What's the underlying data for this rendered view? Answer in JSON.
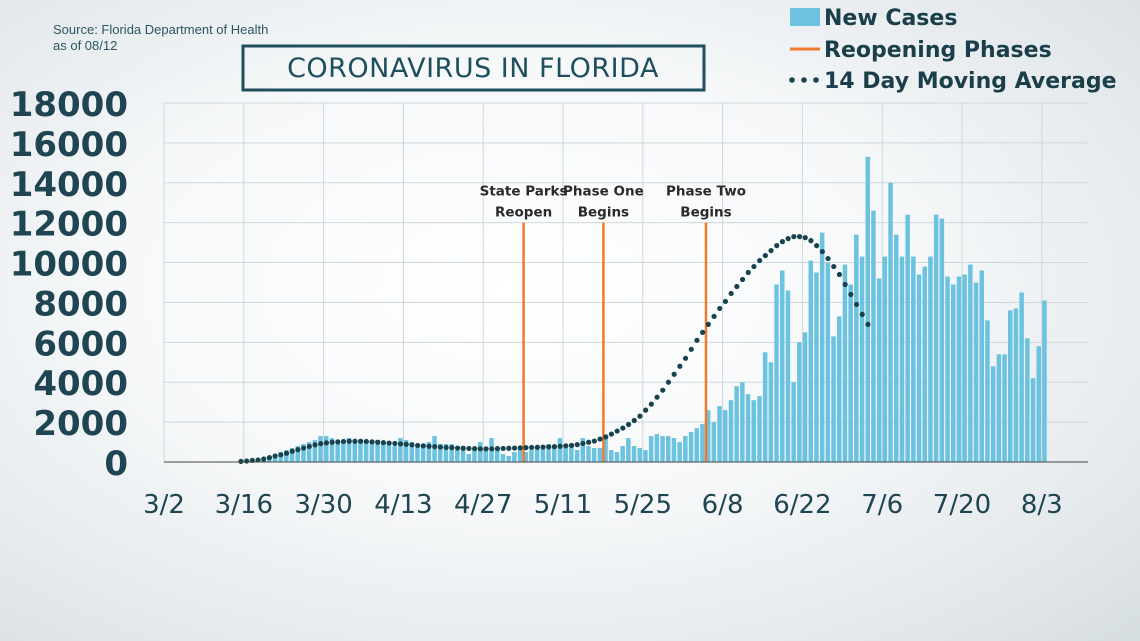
{
  "header": {
    "source_line1": "Source: Florida Department of Health",
    "source_line2": "as of 08/12",
    "title": "CORONAVIRUS IN FLORIDA"
  },
  "colors": {
    "bars": "#6cc3df",
    "phase_line": "#f07a2b",
    "moving_avg": "#17434e",
    "title_border": "#1e4f5c"
  },
  "chart_data": {
    "type": "bar",
    "title": "CORONAVIRUS IN FLORIDA",
    "x_start_date": "3/2",
    "x_ticks": [
      "3/2",
      "3/16",
      "3/30",
      "4/13",
      "4/27",
      "5/11",
      "5/25",
      "6/8",
      "6/22",
      "7/6",
      "7/20",
      "8/3"
    ],
    "ylim": [
      0,
      18000
    ],
    "y_ticks": [
      "0",
      "2000",
      "4000",
      "6000",
      "8000",
      "10000",
      "12000",
      "14000",
      "16000",
      "18000"
    ],
    "grid": true,
    "legend_position": "top-right",
    "series": [
      {
        "name": "New Cases",
        "type": "bar",
        "start": "3/14",
        "values": [
          20,
          50,
          70,
          100,
          150,
          200,
          250,
          300,
          500,
          600,
          700,
          800,
          900,
          1000,
          1100,
          1300,
          1300,
          1200,
          1000,
          1100,
          1200,
          1000,
          1100,
          1100,
          1000,
          1100,
          1000,
          1000,
          800,
          1200,
          1100,
          1000,
          800,
          900,
          1000,
          1300,
          900,
          900,
          900,
          600,
          800,
          400,
          600,
          1000,
          700,
          1200,
          600,
          400,
          300,
          500,
          700,
          500,
          600,
          700,
          800,
          900,
          800,
          1200,
          700,
          900,
          600,
          1200,
          800,
          700,
          700,
          1200,
          600,
          500,
          800,
          1200,
          800,
          700,
          600,
          1300,
          1400,
          1300,
          1300,
          1200,
          1000,
          1300,
          1500,
          1700,
          1900,
          2600,
          2000,
          2800,
          2600,
          3100,
          3800,
          4000,
          3400,
          3100,
          3300,
          5500,
          5000,
          8900,
          9600,
          8600,
          4000,
          6000,
          6500,
          10100,
          9500,
          11500,
          10000,
          6300,
          7300,
          9900,
          8900,
          11400,
          10300,
          15300,
          12600,
          9200,
          10300,
          14000,
          11400,
          10300,
          12400,
          10300,
          9400,
          9800,
          10300,
          12400,
          12200,
          9300,
          8900,
          9300,
          9400,
          9900,
          9000,
          9600,
          7100,
          4800,
          5400,
          5400,
          7600,
          7700,
          8500,
          6200,
          4200,
          5800,
          8100
        ]
      },
      {
        "name": "14 Day Moving Average",
        "type": "line",
        "start": "3/15",
        "values": [
          30,
          50,
          80,
          100,
          150,
          220,
          300,
          360,
          440,
          540,
          620,
          700,
          780,
          860,
          920,
          960,
          990,
          1010,
          1030,
          1040,
          1040,
          1040,
          1030,
          1010,
          990,
          970,
          950,
          930,
          910,
          890,
          860,
          830,
          810,
          790,
          770,
          750,
          730,
          720,
          700,
          690,
          680,
          670,
          660,
          660,
          660,
          670,
          680,
          690,
          700,
          710,
          720,
          730,
          740,
          750,
          760,
          770,
          790,
          810,
          830,
          870,
          930,
          990,
          1050,
          1150,
          1260,
          1400,
          1550,
          1700,
          1880,
          2080,
          2300,
          2600,
          2900,
          3250,
          3600,
          4000,
          4400,
          4800,
          5200,
          5650,
          6100,
          6500,
          6900,
          7300,
          7700,
          8050,
          8450,
          8800,
          9150,
          9500,
          9800,
          10100,
          10350,
          10600,
          10850,
          11050,
          11200,
          11300,
          11300,
          11250,
          11100,
          10850,
          10550,
          10200,
          9800,
          9400,
          8900,
          8400,
          7900,
          7400,
          6900
        ]
      },
      {
        "name": "Reopening Phases",
        "type": "vertical_lines",
        "events": [
          {
            "date": "5/4",
            "label_line1": "State Parks",
            "label_line2": "Reopen"
          },
          {
            "date": "5/18",
            "label_line1": "Phase One",
            "label_line2": "Begins"
          },
          {
            "date": "6/5",
            "label_line1": "Phase Two",
            "label_line2": "Begins"
          }
        ]
      }
    ]
  }
}
